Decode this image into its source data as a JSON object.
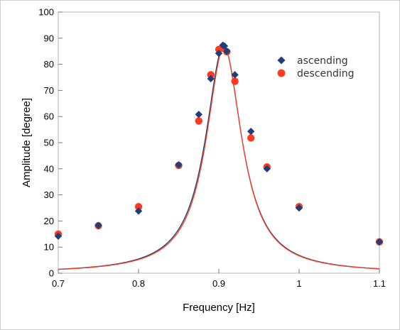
{
  "chart_data": {
    "type": "scatter",
    "title": "",
    "xlabel": "Frequency [Hz]",
    "ylabel": "Amplitude [degree]",
    "xlim": [
      0.7,
      1.1
    ],
    "ylim": [
      0,
      100
    ],
    "xticks": [
      0.7,
      0.8,
      0.9,
      1.0,
      1.1
    ],
    "xtick_labels": [
      "0.7",
      "0.8",
      "0.9",
      "1",
      "1.1"
    ],
    "yticks": [
      0,
      10,
      20,
      30,
      40,
      50,
      60,
      70,
      80,
      90,
      100
    ],
    "yticks_labels": [
      "0",
      "10",
      "20",
      "30",
      "40",
      "50",
      "60",
      "70",
      "80",
      "90",
      "100"
    ],
    "grid": false,
    "legend_position": "top-right",
    "series": [
      {
        "name": "ascending",
        "marker": "diamond",
        "color": "#1f3f7a",
        "x": [
          0.7,
          0.75,
          0.8,
          0.85,
          0.875,
          0.89,
          0.9,
          0.905,
          0.907,
          0.91,
          0.92,
          0.94,
          0.96,
          1.0,
          1.1
        ],
        "y": [
          14.2,
          18.3,
          23.8,
          41.5,
          60.8,
          74.5,
          84.2,
          87.3,
          87.0,
          85.0,
          76.0,
          54.3,
          40.0,
          25.0,
          12.0
        ]
      },
      {
        "name": "descending",
        "marker": "circle",
        "color": "#ff3a1f",
        "x": [
          0.7,
          0.75,
          0.8,
          0.85,
          0.875,
          0.89,
          0.9,
          0.905,
          0.91,
          0.92,
          0.94,
          0.96,
          1.0,
          1.1
        ],
        "y": [
          15.0,
          18.2,
          25.5,
          41.3,
          58.3,
          76.0,
          85.7,
          86.2,
          84.8,
          73.5,
          51.8,
          40.7,
          25.5,
          12.0
        ]
      }
    ],
    "fit_curves": [
      {
        "color": "#1f3f7a",
        "peak_x": 0.906,
        "peak_y": 87.0,
        "halfwidth": 0.0275,
        "floor": 0
      },
      {
        "color": "#ff3a1f",
        "peak_x": 0.9065,
        "peak_y": 86.6,
        "halfwidth": 0.027,
        "floor": 0
      }
    ]
  }
}
